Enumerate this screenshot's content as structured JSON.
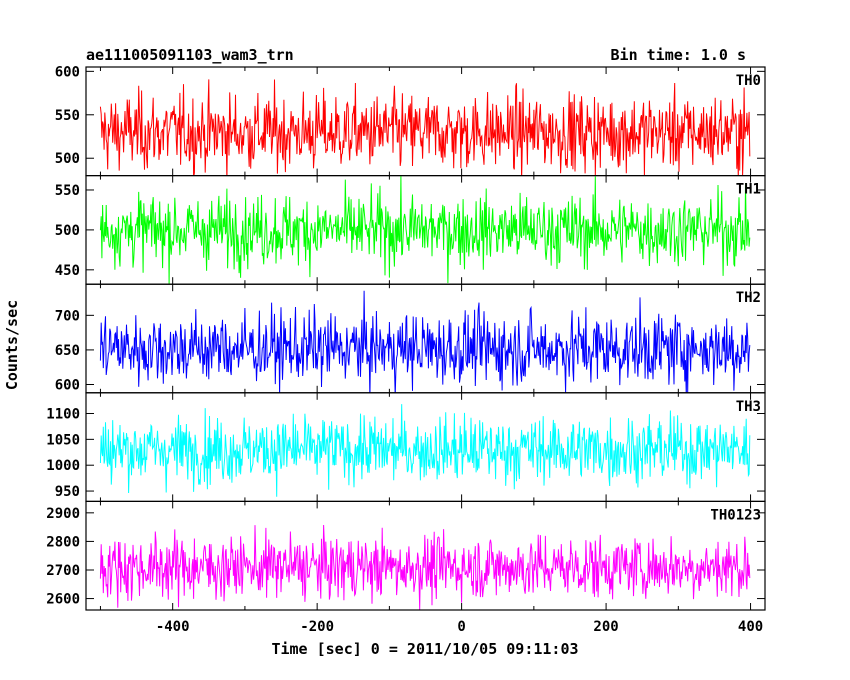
{
  "header": {
    "left_title": "ae111005091103_wam3_trn",
    "right_title": "Bin time: 1.0 s"
  },
  "chart_data": {
    "type": "line",
    "title": "ae111005091103_wam3_trn",
    "subtitle": "Bin time: 1.0 s",
    "xlabel": "Time [sec] 0 = 2011/10/05 09:11:03",
    "ylabel": "Counts/sec",
    "xlim": [
      -520,
      420
    ],
    "x_range": [
      -500,
      399
    ],
    "bin_time_s": 1.0,
    "x_ticks": [
      -400,
      -200,
      0,
      200,
      400
    ],
    "grid": false,
    "legend": "per-panel label at top-right",
    "panels": [
      {
        "name": "TH0",
        "color": "#ff0000",
        "ylim": [
          480,
          605
        ],
        "y_ticks": [
          500,
          550,
          600
        ],
        "mean": 530,
        "spread": 22
      },
      {
        "name": "TH1",
        "color": "#00ff00",
        "ylim": [
          432,
          568
        ],
        "y_ticks": [
          450,
          500,
          550
        ],
        "mean": 500,
        "spread": 22
      },
      {
        "name": "TH2",
        "color": "#0000ff",
        "ylim": [
          588,
          745
        ],
        "y_ticks": [
          600,
          650,
          700
        ],
        "mean": 652,
        "spread": 26
      },
      {
        "name": "TH3",
        "color": "#00ffff",
        "ylim": [
          930,
          1140
        ],
        "y_ticks": [
          950,
          1000,
          1050,
          1100
        ],
        "mean": 1030,
        "spread": 32
      },
      {
        "name": "TH0123",
        "color": "#ff00ff",
        "ylim": [
          2560,
          2940
        ],
        "y_ticks": [
          2600,
          2700,
          2800,
          2900
        ],
        "mean": 2710,
        "spread": 55
      }
    ]
  }
}
